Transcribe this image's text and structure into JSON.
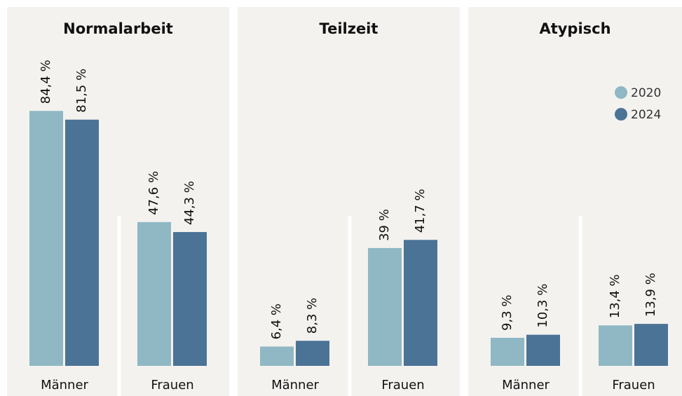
{
  "chart_data": [
    {
      "type": "bar",
      "title": "Normalarbeit",
      "categories": [
        "Männer",
        "Frauen"
      ],
      "ylim": [
        0,
        100
      ],
      "series": [
        {
          "color": "#8fb8c4",
          "values": [
            84.4,
            47.6
          ],
          "value_labels": [
            "84,4 %",
            "47,6 %"
          ]
        },
        {
          "color": "#4a7396",
          "values": [
            81.5,
            44.3
          ],
          "value_labels": [
            "81,5 %",
            "44,3 %"
          ]
        }
      ]
    },
    {
      "type": "bar",
      "title": "Teilzeit",
      "categories": [
        "Männer",
        "Frauen"
      ],
      "ylim": [
        0,
        100
      ],
      "series": [
        {
          "color": "#8fb8c4",
          "values": [
            6.4,
            39
          ],
          "value_labels": [
            "6,4 %",
            "39 %"
          ]
        },
        {
          "color": "#4a7396",
          "values": [
            8.3,
            41.7
          ],
          "value_labels": [
            "8,3 %",
            "41,7 %"
          ]
        }
      ]
    },
    {
      "type": "bar",
      "title": "Atypisch",
      "categories": [
        "Männer",
        "Frauen"
      ],
      "ylim": [
        0,
        100
      ],
      "legend": "upper right",
      "series": [
        {
          "name": "2020",
          "color": "#8fb8c4",
          "values": [
            9.3,
            13.4
          ],
          "value_labels": [
            "9,3 %",
            "13,4 %"
          ]
        },
        {
          "name": "2024",
          "color": "#4a7396",
          "values": [
            10.3,
            13.9
          ],
          "value_labels": [
            "10,3 %",
            "13,9 %"
          ]
        }
      ]
    }
  ]
}
